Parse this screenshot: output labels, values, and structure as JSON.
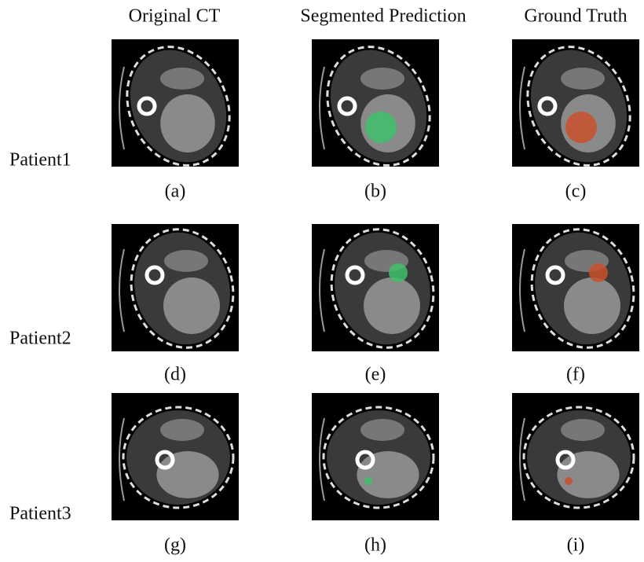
{
  "columns": [
    "Original CT",
    "Segmented Prediction",
    "Ground Truth"
  ],
  "rows": [
    {
      "label": "Patient1",
      "captions": [
        "(a)",
        "(b)",
        "(c)"
      ]
    },
    {
      "label": "Patient2",
      "captions": [
        "(d)",
        "(e)",
        "(f)"
      ]
    },
    {
      "label": "Patient3",
      "captions": [
        "(g)",
        "(h)",
        "(i)"
      ]
    }
  ]
}
